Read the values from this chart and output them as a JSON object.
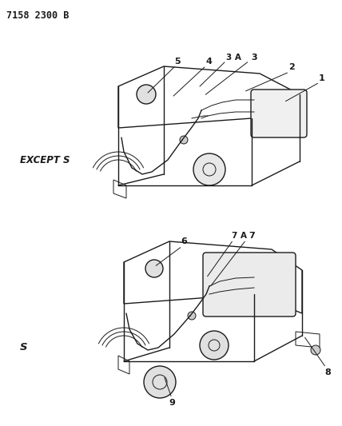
{
  "title": "7158 2300 B",
  "background_color": "#ffffff",
  "text_color": "#1a1a1a",
  "label1": "EXCEPT S",
  "label2": "S",
  "fig_width": 4.28,
  "fig_height": 5.33,
  "dpi": 100,
  "ann_lw": 0.7,
  "lw_thin": 0.7,
  "lw_med": 1.0,
  "lw_thick": 1.4
}
